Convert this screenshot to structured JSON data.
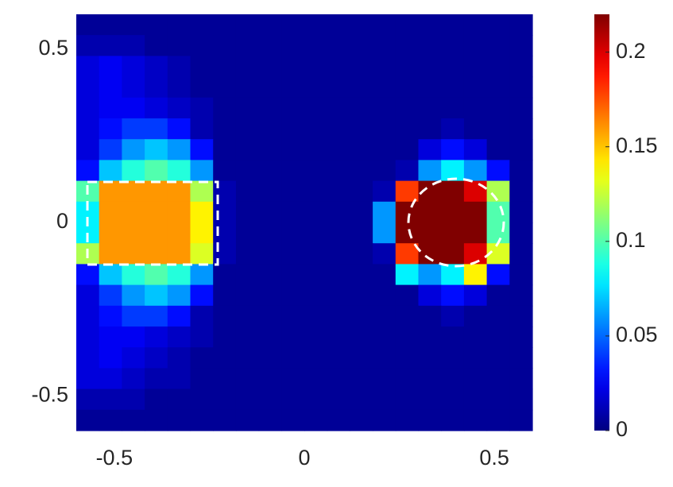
{
  "chart_data": {
    "type": "heatmap",
    "x": [
      -0.57,
      -0.51,
      -0.45,
      -0.39,
      -0.33,
      -0.27,
      -0.21,
      -0.15,
      -0.09,
      -0.03,
      0.03,
      0.09,
      0.15,
      0.21,
      0.27,
      0.33,
      0.39,
      0.45,
      0.51,
      0.57
    ],
    "y": [
      0.57,
      0.51,
      0.45,
      0.39,
      0.33,
      0.27,
      0.21,
      0.15,
      0.09,
      0.03,
      -0.03,
      -0.09,
      -0.15,
      -0.21,
      -0.27,
      -0.33,
      -0.39,
      -0.45,
      -0.51,
      -0.57
    ],
    "z": [
      [
        0.005,
        0.005,
        0.005,
        0.005,
        0.005,
        0.005,
        0.005,
        0.005,
        0.005,
        0.005,
        0.005,
        0.005,
        0.005,
        0.005,
        0.005,
        0.005,
        0.005,
        0.005,
        0.005,
        0.005
      ],
      [
        0.01,
        0.01,
        0.01,
        0.005,
        0.005,
        0.005,
        0.005,
        0.005,
        0.005,
        0.005,
        0.005,
        0.005,
        0.005,
        0.005,
        0.005,
        0.005,
        0.005,
        0.005,
        0.005,
        0.005
      ],
      [
        0.02,
        0.025,
        0.02,
        0.015,
        0.01,
        0.005,
        0.005,
        0.005,
        0.005,
        0.005,
        0.005,
        0.005,
        0.005,
        0.005,
        0.005,
        0.005,
        0.005,
        0.005,
        0.005,
        0.005
      ],
      [
        0.02,
        0.025,
        0.02,
        0.015,
        0.01,
        0.005,
        0.005,
        0.005,
        0.005,
        0.005,
        0.005,
        0.005,
        0.005,
        0.005,
        0.005,
        0.005,
        0.005,
        0.005,
        0.005,
        0.005
      ],
      [
        0.02,
        0.025,
        0.025,
        0.02,
        0.015,
        0.01,
        0.005,
        0.005,
        0.005,
        0.005,
        0.005,
        0.005,
        0.005,
        0.005,
        0.005,
        0.005,
        0.005,
        0.005,
        0.005,
        0.005
      ],
      [
        0.02,
        0.03,
        0.04,
        0.04,
        0.03,
        0.01,
        0.005,
        0.005,
        0.005,
        0.005,
        0.005,
        0.005,
        0.005,
        0.005,
        0.005,
        0.005,
        0.01,
        0.005,
        0.005,
        0.005
      ],
      [
        0.02,
        0.04,
        0.06,
        0.07,
        0.06,
        0.03,
        0.005,
        0.005,
        0.005,
        0.005,
        0.005,
        0.005,
        0.005,
        0.005,
        0.005,
        0.02,
        0.03,
        0.02,
        0.005,
        0.005
      ],
      [
        0.03,
        0.07,
        0.09,
        0.1,
        0.09,
        0.06,
        0.005,
        0.005,
        0.005,
        0.005,
        0.005,
        0.005,
        0.005,
        0.005,
        0.01,
        0.06,
        0.08,
        0.06,
        0.03,
        0.005
      ],
      [
        0.1,
        0.16,
        0.16,
        0.16,
        0.16,
        0.12,
        0.01,
        0.005,
        0.005,
        0.005,
        0.005,
        0.005,
        0.005,
        0.01,
        0.18,
        0.22,
        0.22,
        0.2,
        0.12,
        0.005
      ],
      [
        0.08,
        0.16,
        0.16,
        0.16,
        0.16,
        0.14,
        0.01,
        0.005,
        0.005,
        0.005,
        0.005,
        0.005,
        0.005,
        0.06,
        0.22,
        0.22,
        0.22,
        0.22,
        0.1,
        0.005
      ],
      [
        0.08,
        0.16,
        0.16,
        0.16,
        0.16,
        0.14,
        0.01,
        0.005,
        0.005,
        0.005,
        0.005,
        0.005,
        0.005,
        0.06,
        0.22,
        0.22,
        0.22,
        0.22,
        0.1,
        0.005
      ],
      [
        0.12,
        0.16,
        0.16,
        0.16,
        0.16,
        0.13,
        0.01,
        0.005,
        0.005,
        0.005,
        0.005,
        0.005,
        0.005,
        0.01,
        0.18,
        0.22,
        0.22,
        0.2,
        0.13,
        0.005
      ],
      [
        0.03,
        0.07,
        0.09,
        0.1,
        0.09,
        0.06,
        0.005,
        0.005,
        0.005,
        0.005,
        0.005,
        0.005,
        0.005,
        0.005,
        0.08,
        0.06,
        0.08,
        0.14,
        0.03,
        0.005
      ],
      [
        0.02,
        0.04,
        0.06,
        0.07,
        0.06,
        0.03,
        0.005,
        0.005,
        0.005,
        0.005,
        0.005,
        0.005,
        0.005,
        0.005,
        0.005,
        0.02,
        0.03,
        0.02,
        0.005,
        0.005
      ],
      [
        0.02,
        0.03,
        0.04,
        0.04,
        0.03,
        0.01,
        0.005,
        0.005,
        0.005,
        0.005,
        0.005,
        0.005,
        0.005,
        0.005,
        0.005,
        0.005,
        0.01,
        0.005,
        0.005,
        0.005
      ],
      [
        0.02,
        0.025,
        0.025,
        0.02,
        0.015,
        0.01,
        0.005,
        0.005,
        0.005,
        0.005,
        0.005,
        0.005,
        0.005,
        0.005,
        0.005,
        0.005,
        0.005,
        0.005,
        0.005,
        0.005
      ],
      [
        0.02,
        0.025,
        0.02,
        0.015,
        0.01,
        0.005,
        0.005,
        0.005,
        0.005,
        0.005,
        0.005,
        0.005,
        0.005,
        0.005,
        0.005,
        0.005,
        0.005,
        0.005,
        0.005,
        0.005
      ],
      [
        0.02,
        0.02,
        0.015,
        0.01,
        0.01,
        0.005,
        0.005,
        0.005,
        0.005,
        0.005,
        0.005,
        0.005,
        0.005,
        0.005,
        0.005,
        0.005,
        0.005,
        0.005,
        0.005,
        0.005
      ],
      [
        0.01,
        0.01,
        0.01,
        0.005,
        0.005,
        0.005,
        0.005,
        0.005,
        0.005,
        0.005,
        0.005,
        0.005,
        0.005,
        0.005,
        0.005,
        0.005,
        0.005,
        0.005,
        0.005,
        0.005
      ],
      [
        0.005,
        0.005,
        0.005,
        0.005,
        0.005,
        0.005,
        0.005,
        0.005,
        0.005,
        0.005,
        0.005,
        0.005,
        0.005,
        0.005,
        0.005,
        0.005,
        0.005,
        0.005,
        0.005,
        0.005
      ]
    ],
    "xlim": [
      -0.6,
      0.6
    ],
    "ylim": [
      -0.6,
      0.6
    ],
    "xticks": [
      -0.5,
      0,
      0.5
    ],
    "yticks": [
      -0.5,
      0,
      0.5
    ],
    "clim": [
      0,
      0.22
    ],
    "cticks": [
      0,
      0.05,
      0.1,
      0.15,
      0.2
    ],
    "colormap": "jet"
  }
}
